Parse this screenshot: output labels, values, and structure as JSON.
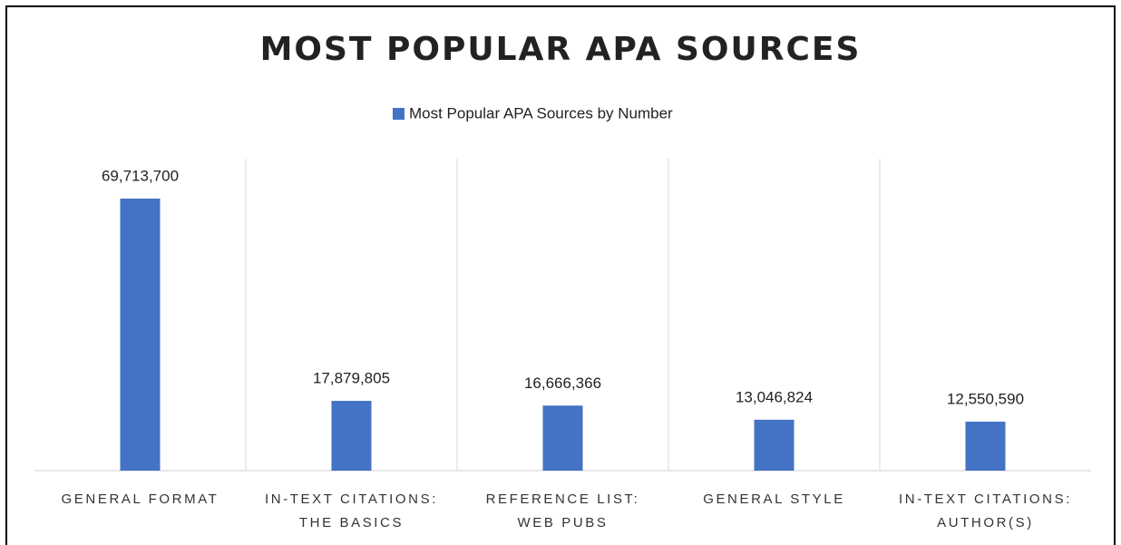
{
  "chart_data": {
    "type": "bar",
    "title": "MOST POPULAR APA SOURCES",
    "categories": [
      "GENERAL FORMAT",
      "IN-TEXT CITATIONS:\nTHE BASICS",
      "REFERENCE LIST:\nWEB PUBS",
      "GENERAL STYLE",
      "IN-TEXT CITATIONS:\nAUTHOR(S)"
    ],
    "series": [
      {
        "name": "Most Popular APA Sources by Number",
        "color": "#4472c4",
        "values": [
          69713700,
          17879805,
          16666366,
          13046824,
          12550590
        ],
        "value_labels": [
          "69,713,700",
          "17,879,805",
          "16,666,366",
          "13,046,824",
          "12,550,590"
        ]
      }
    ],
    "legend": "top"
  }
}
